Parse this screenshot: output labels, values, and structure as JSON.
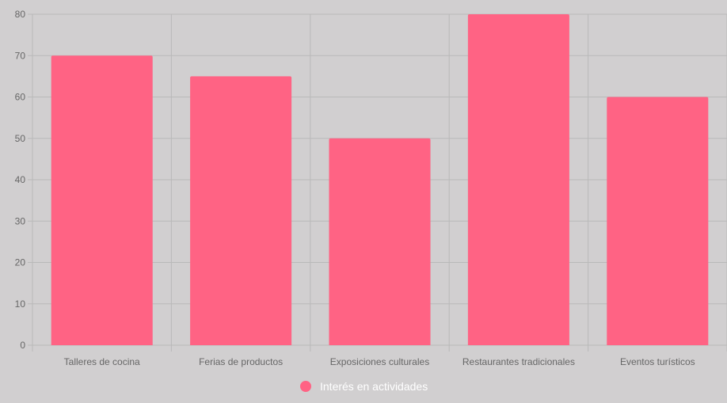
{
  "chart_data": {
    "type": "bar",
    "categories": [
      "Talleres de cocina",
      "Ferias de productos",
      "Exposiciones culturales",
      "Restaurantes tradicionales",
      "Eventos turísticos"
    ],
    "series": [
      {
        "name": "Interés en actividades",
        "values": [
          70,
          65,
          50,
          80,
          60
        ]
      }
    ],
    "title": "",
    "xlabel": "",
    "ylabel": "",
    "ylim": [
      0,
      80
    ],
    "yticks": [
      0,
      10,
      20,
      30,
      40,
      50,
      60,
      70,
      80
    ],
    "grid": true,
    "legend_position": "bottom",
    "colors": {
      "bar": "#ff6384",
      "background": "#d1cfd0",
      "grid": "#b9b9b9",
      "tick_label": "#666666",
      "legend_text": "#ffffff"
    }
  }
}
